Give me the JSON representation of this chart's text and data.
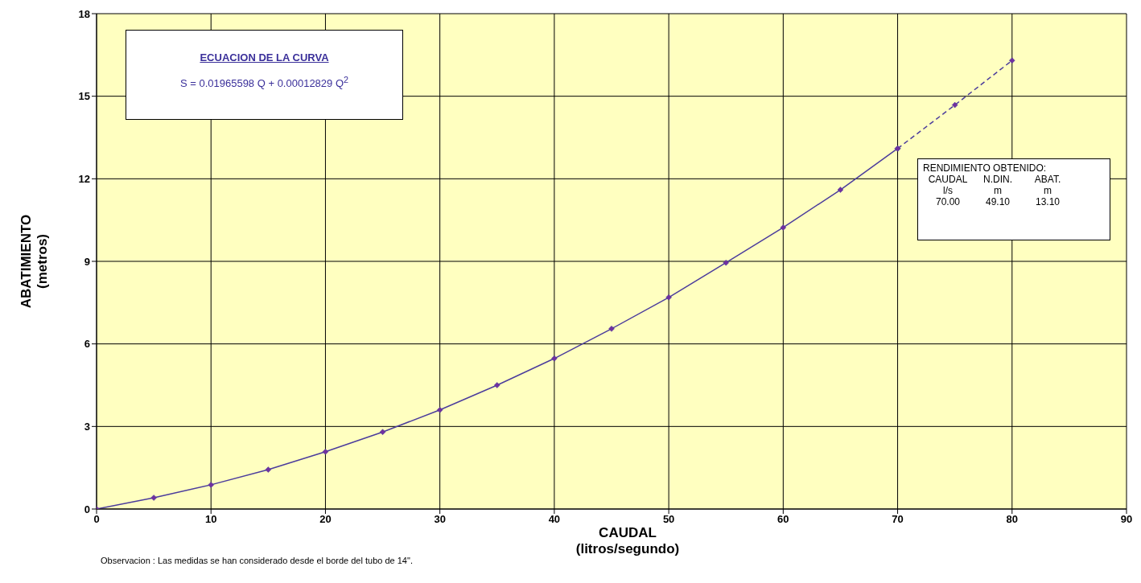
{
  "chart_data": {
    "type": "line",
    "xlabel": "CAUDAL\n(litros/segundo)",
    "ylabel": "ABATIMIENTO\n(metros)",
    "xlim": [
      0,
      90
    ],
    "xticks": [
      0,
      10,
      20,
      30,
      40,
      50,
      60,
      70,
      80,
      90
    ],
    "ylim": [
      0,
      18
    ],
    "yticks": [
      0,
      3,
      6,
      9,
      12,
      15,
      18
    ],
    "grid": true,
    "marker": "diamond",
    "legend": false,
    "series": [
      {
        "color": "#4b3c9c",
        "line_style": "solid",
        "x": [
          0,
          5,
          10,
          15,
          20,
          25,
          30,
          35,
          40,
          45,
          50,
          55,
          60,
          65,
          70
        ],
        "values": [
          0,
          0.41,
          0.88,
          1.43,
          2.08,
          2.8,
          3.6,
          4.5,
          5.47,
          6.55,
          7.69,
          8.95,
          10.23,
          11.6,
          13.1
        ]
      },
      {
        "color": "#4b3c9c",
        "line_style": "dashed",
        "x": [
          70,
          75,
          80
        ],
        "values": [
          13.1,
          14.68,
          16.3
        ]
      }
    ],
    "annotations": [
      "ECUACION DE LA CURVA",
      "S = 0.01965598 Q + 0.00012829 Q$^{2}$",
      "RENDIMIENTO OBTENIDO:",
      "CAUDAL   N.DIN.   ABAT.",
      "l/s   m   m",
      "70.00   49.10   13.10",
      "Observacion : Las medidas se han considerado desde el borde del tubo de 14\"."
    ]
  }
}
